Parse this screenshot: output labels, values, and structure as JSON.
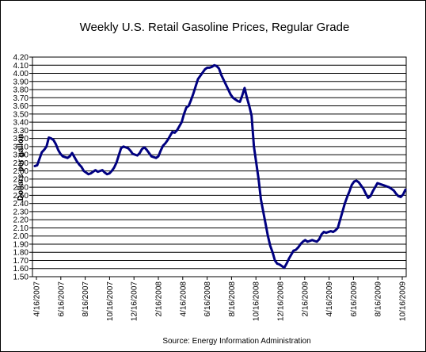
{
  "chart_data": {
    "type": "line",
    "title": "Weekly U.S. Retail Gasoline Prices, Regular Grade",
    "ylabel": "Dollars per gallon",
    "source": "Source:  Energy Information Administration",
    "ylim": [
      1.5,
      4.2
    ],
    "y_ticks": [
      "1.50",
      "1.60",
      "1.70",
      "1.80",
      "1.90",
      "2.00",
      "2.10",
      "2.20",
      "2.30",
      "2.40",
      "2.50",
      "2.60",
      "2.70",
      "2.80",
      "2.90",
      "3.00",
      "3.10",
      "3.20",
      "3.30",
      "3.40",
      "3.50",
      "3.60",
      "3.70",
      "3.80",
      "3.90",
      "4.00",
      "4.10",
      "4.20"
    ],
    "x_ticks": [
      "4/16/2007",
      "6/16/2007",
      "8/16/2007",
      "10/16/2007",
      "12/16/2007",
      "2/16/2008",
      "4/16/2008",
      "6/16/2008",
      "8/16/2008",
      "10/16/2008",
      "12/16/2008",
      "2/16/2009",
      "4/16/2009",
      "6/16/2009",
      "8/16/2009",
      "10/16/2009"
    ],
    "grid": true,
    "series_color": "#000080",
    "series": [
      {
        "values": [
          2.86,
          2.87,
          2.95,
          3.03,
          3.06,
          3.1,
          3.21,
          3.2,
          3.18,
          3.13,
          3.06,
          3.01,
          2.98,
          2.97,
          2.96,
          2.98,
          3.02,
          2.97,
          2.92,
          2.88,
          2.85,
          2.8,
          2.78,
          2.76,
          2.77,
          2.79,
          2.81,
          2.79,
          2.8,
          2.81,
          2.78,
          2.76,
          2.77,
          2.8,
          2.84,
          2.9,
          2.99,
          3.08,
          3.1,
          3.09,
          3.08,
          3.05,
          3.01,
          3.0,
          2.99,
          3.02,
          3.07,
          3.09,
          3.06,
          3.02,
          2.98,
          2.97,
          2.96,
          2.98,
          3.05,
          3.11,
          3.14,
          3.18,
          3.23,
          3.28,
          3.27,
          3.3,
          3.35,
          3.4,
          3.5,
          3.58,
          3.6,
          3.67,
          3.75,
          3.84,
          3.93,
          3.97,
          4.01,
          4.05,
          4.07,
          4.07,
          4.08,
          4.1,
          4.09,
          4.06,
          3.98,
          3.92,
          3.86,
          3.8,
          3.74,
          3.7,
          3.68,
          3.66,
          3.65,
          3.73,
          3.82,
          3.7,
          3.6,
          3.48,
          3.1,
          2.9,
          2.7,
          2.45,
          2.3,
          2.15,
          2.0,
          1.88,
          1.8,
          1.7,
          1.66,
          1.65,
          1.63,
          1.61,
          1.66,
          1.72,
          1.77,
          1.82,
          1.83,
          1.86,
          1.9,
          1.93,
          1.95,
          1.93,
          1.94,
          1.95,
          1.94,
          1.93,
          1.96,
          2.02,
          2.05,
          2.04,
          2.05,
          2.06,
          2.05,
          2.07,
          2.1,
          2.2,
          2.3,
          2.4,
          2.48,
          2.55,
          2.63,
          2.67,
          2.68,
          2.66,
          2.62,
          2.58,
          2.52,
          2.47,
          2.49,
          2.55,
          2.6,
          2.65,
          2.64,
          2.63,
          2.62,
          2.61,
          2.6,
          2.58,
          2.56,
          2.52,
          2.49,
          2.48,
          2.51,
          2.57
        ]
      }
    ]
  }
}
